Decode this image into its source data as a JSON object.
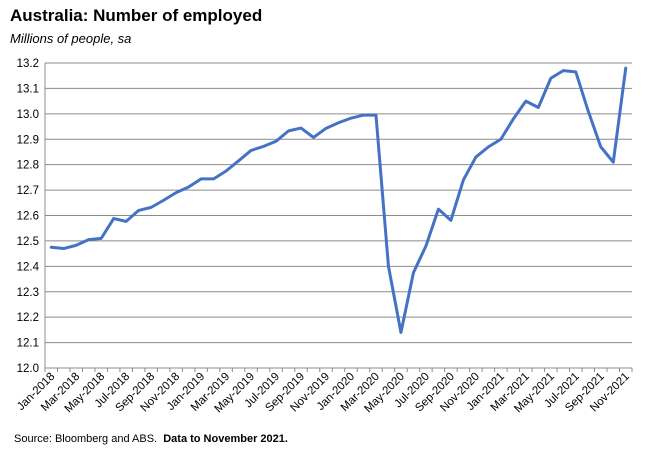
{
  "chart_data": {
    "type": "line",
    "title": "Australia: Number of employed",
    "subtitle": "Millions of people, sa",
    "xlabel": "",
    "ylabel": "",
    "ylim": [
      12.0,
      13.2
    ],
    "yticks": [
      "12.0",
      "12.1",
      "12.2",
      "12.3",
      "12.4",
      "12.5",
      "12.6",
      "12.7",
      "12.8",
      "12.9",
      "13.0",
      "13.1",
      "13.2"
    ],
    "xtick_labels": [
      "Jan-2018",
      "Mar-2018",
      "May-2018",
      "Jul-2018",
      "Sep-2018",
      "Nov-2018",
      "Jan-2019",
      "Mar-2019",
      "May-2019",
      "Jul-2019",
      "Sep-2019",
      "Nov-2019",
      "Jan-2020",
      "Mar-2020",
      "May-2020",
      "Jul-2020",
      "Sep-2020",
      "Nov-2020",
      "Jan-2021",
      "Mar-2021",
      "May-2021",
      "Jul-2021",
      "Sep-2021",
      "Nov-2021"
    ],
    "grid": "horizontal",
    "legend": "none",
    "line_color": "#4472C4",
    "x": [
      "Jan-2018",
      "Feb-2018",
      "Mar-2018",
      "Apr-2018",
      "May-2018",
      "Jun-2018",
      "Jul-2018",
      "Aug-2018",
      "Sep-2018",
      "Oct-2018",
      "Nov-2018",
      "Dec-2018",
      "Jan-2019",
      "Feb-2019",
      "Mar-2019",
      "Apr-2019",
      "May-2019",
      "Jun-2019",
      "Jul-2019",
      "Aug-2019",
      "Sep-2019",
      "Oct-2019",
      "Nov-2019",
      "Dec-2019",
      "Jan-2020",
      "Feb-2020",
      "Mar-2020",
      "Apr-2020",
      "May-2020",
      "Jun-2020",
      "Jul-2020",
      "Aug-2020",
      "Sep-2020",
      "Oct-2020",
      "Nov-2020",
      "Dec-2020",
      "Jan-2021",
      "Feb-2021",
      "Mar-2021",
      "Apr-2021",
      "May-2021",
      "Jun-2021",
      "Jul-2021",
      "Aug-2021",
      "Sep-2021",
      "Oct-2021",
      "Nov-2021"
    ],
    "series": [
      {
        "values": [
          12.475,
          12.47,
          12.483,
          12.505,
          12.51,
          12.588,
          12.577,
          12.62,
          12.632,
          12.66,
          12.69,
          12.712,
          12.744,
          12.744,
          12.775,
          12.815,
          12.856,
          12.872,
          12.892,
          12.933,
          12.944,
          12.907,
          12.943,
          12.965,
          12.983,
          12.995,
          12.995,
          12.4,
          12.14,
          12.375,
          12.48,
          12.625,
          12.581,
          12.74,
          12.83,
          12.87,
          12.9,
          12.98,
          13.05,
          13.025,
          13.14,
          13.17,
          13.165,
          13.01,
          12.87,
          12.81,
          13.18
        ]
      }
    ]
  },
  "source": {
    "text": "Source: Bloomberg and ABS.",
    "note": "Data to November 2021."
  }
}
